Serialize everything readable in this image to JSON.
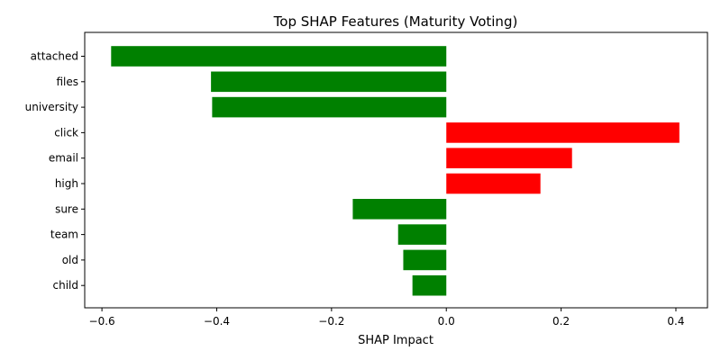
{
  "chart_data": {
    "type": "bar",
    "orientation": "horizontal",
    "title": "Top SHAP Features (Maturity Voting)",
    "xlabel": "SHAP Impact",
    "ylabel": "",
    "categories": [
      "attached",
      "files",
      "university",
      "click",
      "email",
      "high",
      "sure",
      "team",
      "old",
      "child"
    ],
    "values": [
      -0.584,
      -0.41,
      -0.408,
      0.406,
      0.219,
      0.164,
      -0.163,
      -0.084,
      -0.075,
      -0.059
    ],
    "xlim": [
      -0.63,
      0.455
    ],
    "xticks": [
      -0.6,
      -0.4,
      -0.2,
      0.0,
      0.2,
      0.4
    ],
    "xtick_labels": [
      "−0.6",
      "−0.4",
      "−0.2",
      "0.0",
      "0.2",
      "0.4"
    ],
    "grid": false,
    "legend": "none",
    "colors": {
      "positive": "#ff0000",
      "negative": "#008000"
    }
  }
}
